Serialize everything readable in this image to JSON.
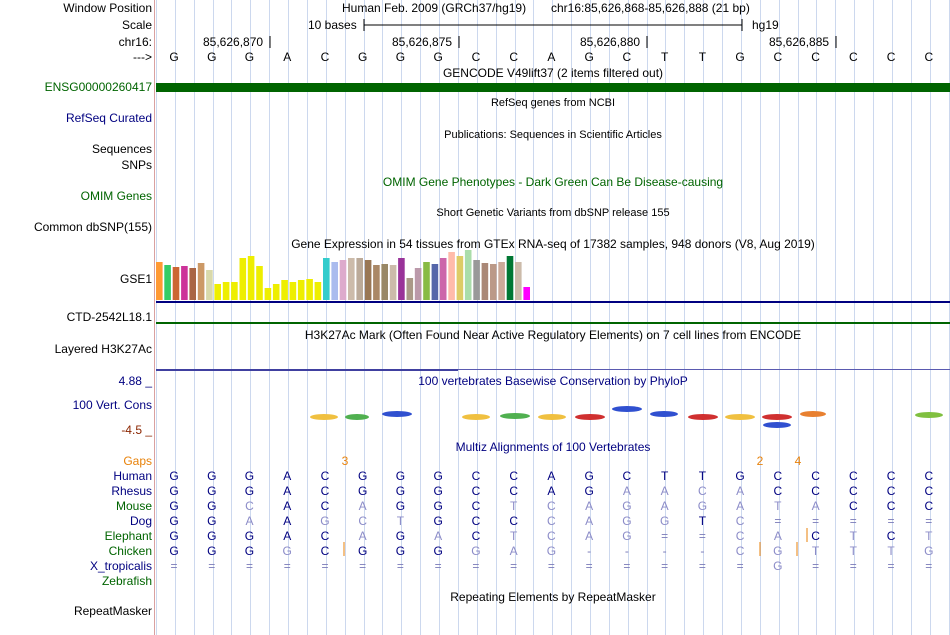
{
  "labels": {
    "window_position": "Window Position",
    "scale": "Scale",
    "chrom": "chr16:",
    "strand": "--->",
    "ensg": "ENSG00000260417",
    "refseq": "RefSeq Curated",
    "sequences": "Sequences",
    "snps": "SNPs",
    "omim": "OMIM Genes",
    "dbsnp": "Common dbSNP(155)",
    "gse": "GSE1",
    "ctd": "CTD-2542L18.1",
    "h3k27": "Layered H3K27Ac",
    "cons_max": "4.88 _",
    "cons": "100 Vert. Cons",
    "cons_min": "-4.5 _",
    "gaps": "Gaps",
    "repeat": "RepeatMasker"
  },
  "header": {
    "assembly": "Human Feb. 2009 (GRCh37/hg19)",
    "position": "chr16:85,626,868-85,626,888 (21 bp)",
    "scale_text": "10 bases",
    "db": "hg19",
    "coords": [
      "85,626,870",
      "85,626,875",
      "85,626,880",
      "85,626,885"
    ]
  },
  "bases": [
    "G",
    "G",
    "G",
    "A",
    "C",
    "G",
    "G",
    "G",
    "C",
    "C",
    "A",
    "G",
    "C",
    "T",
    "T",
    "G",
    "C",
    "C",
    "C",
    "C",
    "C"
  ],
  "tracks": {
    "gencode": "GENCODE V49lift37 (2 items filtered out)",
    "refseq": "RefSeq genes from NCBI",
    "pubs": "Publications: Sequences in Scientific Articles",
    "omim": "OMIM Gene Phenotypes - Dark Green Can Be Disease-causing",
    "dbsnp": "Short Genetic Variants from dbSNP release 155",
    "gtex": "Gene Expression in 54 tissues from GTEx RNA-seq of 17382 samples, 948 donors (V8, Aug 2019)",
    "h3k27": "H3K27Ac Mark (Often Found Near Active Regulatory Elements) on 7 cell lines from ENCODE",
    "phylop": "100 vertebrates Basewise Conservation by PhyloP",
    "multiz": "Multiz Alignments of 100 Vertebrates",
    "rmsk": "Repeating Elements by RepeatMasker"
  },
  "gap_counts": [
    "3",
    "2",
    "4"
  ],
  "species": [
    {
      "name": "Human",
      "color": "#000080",
      "bases": [
        "G",
        "G",
        "G",
        "A",
        "C",
        "G",
        "G",
        "G",
        "C",
        "C",
        "A",
        "G",
        "C",
        "T",
        "T",
        "G",
        "C",
        "C",
        "C",
        "C",
        "C"
      ]
    },
    {
      "name": "Rhesus",
      "color": "#000080",
      "bases": [
        "G",
        "G",
        "G",
        "A",
        "C",
        "G",
        "G",
        "G",
        "C",
        "C",
        "A",
        "G",
        "A",
        "A",
        "C",
        "A",
        "C",
        "C",
        "C",
        "C",
        "C"
      ]
    },
    {
      "name": "Mouse",
      "color": "#006400",
      "bases": [
        "G",
        "G",
        "C",
        "A",
        "C",
        "A",
        "G",
        "G",
        "C",
        "T",
        "C",
        "A",
        "G",
        "A",
        "G",
        "A",
        "T",
        "A",
        "C",
        "C",
        "C"
      ]
    },
    {
      "name": "Dog",
      "color": "#000080",
      "bases": [
        "G",
        "G",
        "A",
        "A",
        "G",
        "C",
        "T",
        "G",
        "C",
        "C",
        "C",
        "A",
        "G",
        "G",
        "T",
        "C",
        "=",
        "=",
        "=",
        "=",
        "="
      ]
    },
    {
      "name": "Elephant",
      "color": "#006400",
      "bases": [
        "G",
        "G",
        "G",
        "A",
        "C",
        "A",
        "G",
        "A",
        "C",
        "T",
        "C",
        "A",
        "G",
        "=",
        "=",
        "C",
        "A",
        "C",
        "T",
        "C",
        "T"
      ]
    },
    {
      "name": "Chicken",
      "color": "#006400",
      "bases": [
        "G",
        "G",
        "G",
        "G",
        "C",
        "G",
        "G",
        "G",
        "G",
        "A",
        "G",
        "-",
        "-",
        "-",
        "-",
        "C",
        "G",
        "T",
        "T",
        "T",
        "G"
      ]
    },
    {
      "name": "X_tropicalis",
      "color": "#000080",
      "bases": [
        "=",
        "=",
        "=",
        "=",
        "=",
        "=",
        "=",
        "=",
        "=",
        "=",
        "=",
        "=",
        "=",
        "=",
        "=",
        "=",
        "G",
        "=",
        "=",
        "=",
        "="
      ]
    },
    {
      "name": "Zebrafish",
      "color": "#006400",
      "bases": []
    }
  ],
  "colors": {
    "gencode": "#006400",
    "navy": "#000080",
    "green": "#006400",
    "cons_red": "#8b2500",
    "gaps": "#e8820a"
  }
}
